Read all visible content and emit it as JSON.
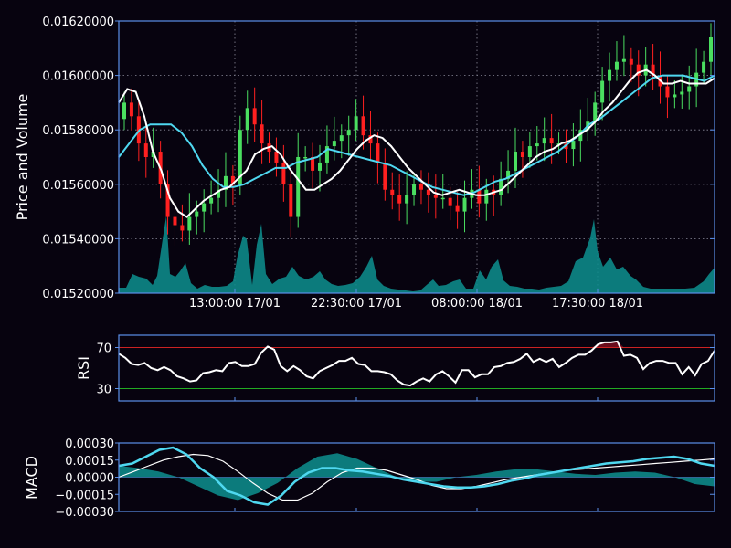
{
  "chart_data": [
    {
      "type": "candlestick",
      "ylabel": "Price and Volume",
      "ylim": [
        0.0152,
        0.0162
      ],
      "yticks": [
        "0.01520000",
        "0.01540000",
        "0.01560000",
        "0.01580000",
        "0.01600000",
        "0.01620000"
      ],
      "xticks": [
        "13:00:00 17/01",
        "22:30:00 17/01",
        "08:00:00 18/01",
        "17:30:00 18/01"
      ],
      "grid": true,
      "colors": {
        "up": "#4ade60",
        "down": "#ff2020",
        "ma_fast": "#ffffff",
        "ma_slow": "#4fd8f0",
        "volume": "#0e8c8c",
        "frame": "#5b8fe8"
      },
      "close": [
        0.0159,
        0.01585,
        0.01575,
        0.0157,
        0.01572,
        0.0156,
        0.01548,
        0.01545,
        0.01543,
        0.01548,
        0.0155,
        0.01553,
        0.01555,
        0.01558,
        0.01563,
        0.0156,
        0.0158,
        0.01588,
        0.01582,
        0.01575,
        0.01572,
        0.01568,
        0.0156,
        0.01548,
        0.0157,
        0.0157,
        0.01565,
        0.01568,
        0.01574,
        0.01576,
        0.01578,
        0.0158,
        0.01585,
        0.01578,
        0.01575,
        0.01568,
        0.01558,
        0.01556,
        0.01553,
        0.01556,
        0.0156,
        0.01558,
        0.01556,
        0.01555,
        0.01555,
        0.01552,
        0.0155,
        0.01555,
        0.01558,
        0.01553,
        0.01558,
        0.01556,
        0.01562,
        0.01565,
        0.01572,
        0.0157,
        0.01574,
        0.01575,
        0.01577,
        0.01575,
        0.01575,
        0.01573,
        0.01576,
        0.0158,
        0.01583,
        0.0159,
        0.01598,
        0.01602,
        0.01605,
        0.01606,
        0.01604,
        0.016,
        0.01604,
        0.016,
        0.01596,
        0.01592,
        0.01593,
        0.01594,
        0.01596,
        0.01601,
        0.01605,
        0.01614
      ],
      "ma_fast": [
        0.0159,
        0.01595,
        0.01594,
        0.01585,
        0.01572,
        0.01565,
        0.01555,
        0.0155,
        0.01548,
        0.01551,
        0.01554,
        0.01556,
        0.01558,
        0.01559,
        0.01562,
        0.01565,
        0.01571,
        0.01573,
        0.01574,
        0.01571,
        0.01566,
        0.01562,
        0.01558,
        0.01558,
        0.0156,
        0.01562,
        0.01565,
        0.01569,
        0.01573,
        0.01576,
        0.01578,
        0.01577,
        0.01574,
        0.0157,
        0.01566,
        0.01563,
        0.0156,
        0.01557,
        0.01556,
        0.01557,
        0.01558,
        0.01557,
        0.01556,
        0.01556,
        0.01557,
        0.01558,
        0.01561,
        0.01564,
        0.01567,
        0.0157,
        0.01572,
        0.01573,
        0.01575,
        0.01576,
        0.01578,
        0.0158,
        0.01583,
        0.01587,
        0.0159,
        0.01594,
        0.01598,
        0.01601,
        0.01602,
        0.016,
        0.01597,
        0.01597,
        0.01598,
        0.01597,
        0.01597,
        0.01597,
        0.01599
      ],
      "ma_slow": [
        0.0157,
        0.01575,
        0.0158,
        0.01582,
        0.01582,
        0.01582,
        0.01579,
        0.01574,
        0.01567,
        0.01562,
        0.01559,
        0.01559,
        0.0156,
        0.01562,
        0.01564,
        0.01566,
        0.01566,
        0.01568,
        0.01569,
        0.0157,
        0.01573,
        0.01572,
        0.01571,
        0.0157,
        0.01569,
        0.01568,
        0.01567,
        0.01565,
        0.01563,
        0.01561,
        0.01559,
        0.01558,
        0.01557,
        0.01556,
        0.01557,
        0.01559,
        0.01561,
        0.01562,
        0.01564,
        0.01566,
        0.01568,
        0.0157,
        0.01572,
        0.01575,
        0.01578,
        0.01582,
        0.01584,
        0.01587,
        0.0159,
        0.01593,
        0.01596,
        0.01599,
        0.016,
        0.016,
        0.016,
        0.01599,
        0.01598,
        0.016
      ]
    },
    {
      "type": "line",
      "ylabel": "RSI",
      "ylim": [
        18,
        82
      ],
      "yticks": [
        "30",
        "70"
      ],
      "thresholds": {
        "overbought": 70,
        "oversold": 30,
        "overbought_color": "#cc2222",
        "oversold_color": "#22aa22"
      },
      "values": [
        64,
        60,
        54,
        53,
        55,
        50,
        48,
        51,
        48,
        42,
        40,
        37,
        38,
        45,
        46,
        48,
        47,
        55,
        56,
        52,
        52,
        54,
        65,
        71,
        68,
        52,
        47,
        52,
        48,
        42,
        40,
        47,
        50,
        53,
        57,
        57,
        60,
        54,
        53,
        47,
        47,
        46,
        44,
        38,
        34,
        33,
        37,
        40,
        37,
        44,
        47,
        42,
        36,
        48,
        48,
        41,
        44,
        44,
        51,
        52,
        55,
        56,
        59,
        64,
        56,
        59,
        56,
        59,
        51,
        55,
        60,
        63,
        63,
        67,
        73,
        75,
        75,
        76,
        62,
        63,
        60,
        49,
        55,
        57,
        57,
        55,
        55,
        44,
        51,
        43,
        54,
        57,
        67
      ]
    },
    {
      "type": "area+line",
      "ylabel": "MACD",
      "ylim": [
        -0.0003,
        0.0003
      ],
      "yticks": [
        "0.00030",
        "0.00015",
        "0.00000",
        "-0.00015",
        "-0.00030"
      ],
      "macd": [
        0.0001,
        0.00012,
        0.00018,
        0.00024,
        0.00026,
        0.0002,
        8e-05,
        0.0,
        -0.00012,
        -0.00016,
        -0.00022,
        -0.00024,
        -0.00016,
        -4e-05,
        4e-05,
        8e-05,
        8e-05,
        6e-05,
        5e-05,
        3e-05,
        1e-05,
        -2e-05,
        -4e-05,
        -6e-05,
        -8e-05,
        -9e-05,
        -9e-05,
        -8e-05,
        -6e-05,
        -3e-05,
        -1e-05,
        2e-05,
        4e-05,
        6e-05,
        8e-05,
        0.0001,
        0.00012,
        0.00013,
        0.00014,
        0.00016,
        0.00017,
        0.00018,
        0.00016,
        0.00012,
        0.0001
      ],
      "signal": [
        0.0,
        5e-05,
        0.0001,
        0.00015,
        0.00018,
        0.0002,
        0.00019,
        0.00014,
        5e-05,
        -5e-05,
        -0.00014,
        -0.0002,
        -0.0002,
        -0.00014,
        -4e-05,
        4e-05,
        8e-05,
        8e-05,
        6e-05,
        2e-05,
        -2e-05,
        -7e-05,
        -0.0001,
        -0.0001,
        -8e-05,
        -5e-05,
        -2e-05,
        0.0,
        2e-05,
        4e-05,
        6e-05,
        7e-05,
        8e-05,
        9e-05,
        0.0001,
        0.00011,
        0.00012,
        0.00013,
        0.00014,
        0.00015,
        0.00016
      ],
      "histogram": [
        0.0001,
        8e-05,
        5e-05,
        0.0,
        -8e-05,
        -0.00016,
        -0.0002,
        -0.00014,
        -5e-05,
        8e-05,
        0.00018,
        0.00021,
        0.00016,
        8e-05,
        0.0,
        -4e-05,
        -4e-05,
        0.0,
        2e-05,
        5e-05,
        7e-05,
        7e-05,
        5e-05,
        3e-05,
        2e-05,
        4e-05,
        5e-05,
        4e-05,
        0.0,
        -6e-05,
        -8e-05
      ],
      "colors": {
        "macd": "#4fd8f0",
        "signal": "#ffffff",
        "histogram": "#0e8c8c"
      }
    }
  ]
}
